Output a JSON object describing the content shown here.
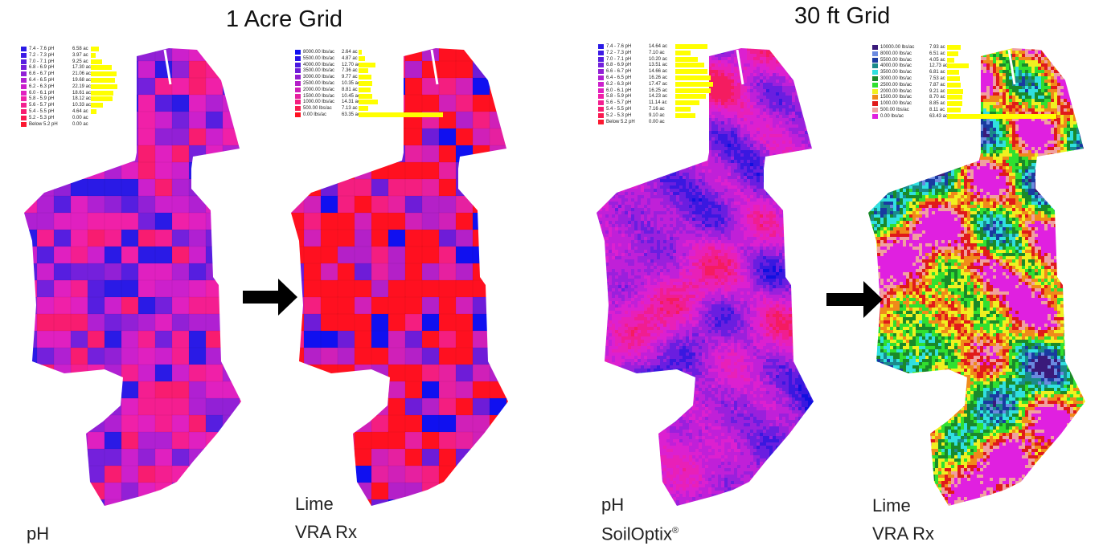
{
  "titles": {
    "left": "1 Acre Grid",
    "right": "30 ft Grid"
  },
  "captions": {
    "panel1": [
      "pH"
    ],
    "panel2": [
      "Lime",
      "VRA Rx"
    ],
    "panel3": [
      "pH",
      "SoilOptix",
      "®"
    ],
    "panel4": [
      "Lime",
      "VRA Rx"
    ]
  },
  "colors": {
    "yellow_bar": "#ffff00",
    "arrow": "#000000"
  },
  "legends": {
    "panel1": [
      {
        "label": "7.4 - 7.6 pH",
        "value": "6.58 ac",
        "acres": 6.58,
        "color": "#2a1ae6"
      },
      {
        "label": "7.2 - 7.3 pH",
        "value": "3.97 ac",
        "acres": 3.97,
        "color": "#3d1ae6"
      },
      {
        "label": "7.0 - 7.1 pH",
        "value": "9.25 ac",
        "acres": 9.25,
        "color": "#561ee0"
      },
      {
        "label": "6.8 - 6.9 pH",
        "value": "17.30 ac",
        "acres": 17.3,
        "color": "#7420dc"
      },
      {
        "label": "6.6 - 6.7 pH",
        "value": "21.06 ac",
        "acres": 21.06,
        "color": "#9220d6"
      },
      {
        "label": "6.4 - 6.5 pH",
        "value": "19.68 ac",
        "acres": 19.68,
        "color": "#b020d2"
      },
      {
        "label": "6.2 - 6.3 pH",
        "value": "22.19 ac",
        "acres": 22.19,
        "color": "#cc20cc"
      },
      {
        "label": "6.0 - 6.1 pH",
        "value": "18.61 ac",
        "acres": 18.61,
        "color": "#e020c0"
      },
      {
        "label": "5.8 - 5.9 pH",
        "value": "18.12 ac",
        "acres": 18.12,
        "color": "#f020a8"
      },
      {
        "label": "5.6 - 5.7 pH",
        "value": "10.33 ac",
        "acres": 10.33,
        "color": "#f41e90"
      },
      {
        "label": "5.4 - 5.5 pH",
        "value": "4.64 ac",
        "acres": 4.64,
        "color": "#f81c70"
      },
      {
        "label": "5.2 - 5.3 pH",
        "value": "0.00 ac",
        "acres": 0.0,
        "color": "#fa1a50"
      },
      {
        "label": "Below 5.2 pH",
        "value": "0.00 ac",
        "acres": 0.0,
        "color": "#fc1830"
      }
    ],
    "panel2": [
      {
        "label": "8000.00 lbs/ac",
        "value": "2.64 ac",
        "acres": 2.64,
        "color": "#1010f0"
      },
      {
        "label": "5500.00 lbs/ac",
        "value": "4.87 ac",
        "acres": 4.87,
        "color": "#2a14e8"
      },
      {
        "label": "4000.00 lbs/ac",
        "value": "12.70 ac",
        "acres": 12.7,
        "color": "#4a18e0"
      },
      {
        "label": "3500.00 lbs/ac",
        "value": "7.36 ac",
        "acres": 7.36,
        "color": "#6e1cd8"
      },
      {
        "label": "3000.00 lbs/ac",
        "value": "9.77 ac",
        "acres": 9.77,
        "color": "#921ed0"
      },
      {
        "label": "2500.00 lbs/ac",
        "value": "10.35 ac",
        "acres": 10.35,
        "color": "#b420c8"
      },
      {
        "label": "2000.00 lbs/ac",
        "value": "8.81 ac",
        "acres": 8.81,
        "color": "#d020b8"
      },
      {
        "label": "1500.00 lbs/ac",
        "value": "10.45 ac",
        "acres": 10.45,
        "color": "#e620a0"
      },
      {
        "label": "1000.00 lbs/ac",
        "value": "14.31 ac",
        "acres": 14.31,
        "color": "#f41e80"
      },
      {
        "label": "500.00 lbs/ac",
        "value": "7.13 ac",
        "acres": 7.13,
        "color": "#fa1c50"
      },
      {
        "label": "0.00 lbs/ac",
        "value": "63.35 ac",
        "acres": 63.35,
        "color": "#ff1020"
      }
    ],
    "panel3": [
      {
        "label": "7.4 - 7.6 pH",
        "value": "14.64 ac",
        "acres": 14.64,
        "color": "#2a1ae6"
      },
      {
        "label": "7.2 - 7.3 pH",
        "value": "7.10 ac",
        "acres": 7.1,
        "color": "#3d1ae6"
      },
      {
        "label": "7.0 - 7.1 pH",
        "value": "10.20 ac",
        "acres": 10.2,
        "color": "#561ee0"
      },
      {
        "label": "6.8 - 6.9 pH",
        "value": "13.51 ac",
        "acres": 13.51,
        "color": "#7420dc"
      },
      {
        "label": "6.6 - 6.7 pH",
        "value": "14.66 ac",
        "acres": 14.66,
        "color": "#9220d6"
      },
      {
        "label": "6.4 - 6.5 pH",
        "value": "16.26 ac",
        "acres": 16.26,
        "color": "#b020d2"
      },
      {
        "label": "6.2 - 6.3 pH",
        "value": "17.47 ac",
        "acres": 17.47,
        "color": "#cc20cc"
      },
      {
        "label": "6.0 - 6.1 pH",
        "value": "16.25 ac",
        "acres": 16.25,
        "color": "#e020c0"
      },
      {
        "label": "5.8 - 5.9 pH",
        "value": "14.23 ac",
        "acres": 14.23,
        "color": "#f020a8"
      },
      {
        "label": "5.6 - 5.7 pH",
        "value": "11.14 ac",
        "acres": 11.14,
        "color": "#f41e90"
      },
      {
        "label": "5.4 - 5.5 pH",
        "value": "7.16 ac",
        "acres": 7.16,
        "color": "#f81c70"
      },
      {
        "label": "5.2 - 5.3 pH",
        "value": "9.10 ac",
        "acres": 9.1,
        "color": "#fa1a50"
      },
      {
        "label": "Below 5.2 pH",
        "value": "0.00 ac",
        "acres": 0.0,
        "color": "#fc1830"
      }
    ],
    "panel4": [
      {
        "label": "10000.00 lbs/ac",
        "value": "7.93 ac",
        "acres": 7.93,
        "color": "#3a1a7a"
      },
      {
        "label": "8000.00 lbs/ac",
        "value": "6.51 ac",
        "acres": 6.51,
        "color": "#6a8ae0"
      },
      {
        "label": "5500.00 lbs/ac",
        "value": "4.05 ac",
        "acres": 4.05,
        "color": "#1a3aa0"
      },
      {
        "label": "4000.00 lbs/ac",
        "value": "12.73 ac",
        "acres": 12.73,
        "color": "#1a8a8a"
      },
      {
        "label": "3500.00 lbs/ac",
        "value": "6.81 ac",
        "acres": 6.81,
        "color": "#30e0e0"
      },
      {
        "label": "3000.00 lbs/ac",
        "value": "7.53 ac",
        "acres": 7.53,
        "color": "#1a8a2a"
      },
      {
        "label": "2500.00 lbs/ac",
        "value": "7.87 ac",
        "acres": 7.87,
        "color": "#30e030"
      },
      {
        "label": "2000.00 lbs/ac",
        "value": "9.21 ac",
        "acres": 9.21,
        "color": "#f0f020"
      },
      {
        "label": "1500.00 lbs/ac",
        "value": "8.70 ac",
        "acres": 8.7,
        "color": "#f08a1a"
      },
      {
        "label": "1000.00 lbs/ac",
        "value": "8.85 ac",
        "acres": 8.85,
        "color": "#e01a1a"
      },
      {
        "label": "500.00 lbs/ac",
        "value": "8.11 ac",
        "acres": 8.11,
        "color": "#f0a0a0"
      },
      {
        "label": "0.00 lbs/ac",
        "value": "63.43 ac",
        "acres": 63.43,
        "color": "#e020e0"
      }
    ]
  },
  "map_colors": {
    "ph_scale": [
      "#2a1ae6",
      "#561ee0",
      "#7420dc",
      "#9220d6",
      "#b020d2",
      "#cc20cc",
      "#e020c0",
      "#f020a8",
      "#f41e90",
      "#f81c70"
    ],
    "lime_scale": [
      "#ff1020",
      "#ff1020",
      "#ff1020",
      "#ff1020",
      "#f41e80",
      "#e620a0",
      "#d020b8",
      "#b420c8",
      "#6e1cd8",
      "#1010f0"
    ],
    "soiloptix_scale": [
      "#1010e0",
      "#3a18e0",
      "#6a1ee0",
      "#9a20dc",
      "#c020d8",
      "#dc20d0",
      "#e820b8",
      "#f01e90",
      "#f41c60"
    ],
    "lime30_scale": [
      "#e020e0",
      "#e020e0",
      "#e020e0",
      "#e020e0",
      "#e020e0",
      "#f0a0a0",
      "#e01a1a",
      "#f08a1a",
      "#f0f020",
      "#30e030",
      "#1a8a2a",
      "#30e0e0",
      "#1a8a8a",
      "#1a3aa0",
      "#6a8ae0",
      "#3a1a7a"
    ]
  }
}
